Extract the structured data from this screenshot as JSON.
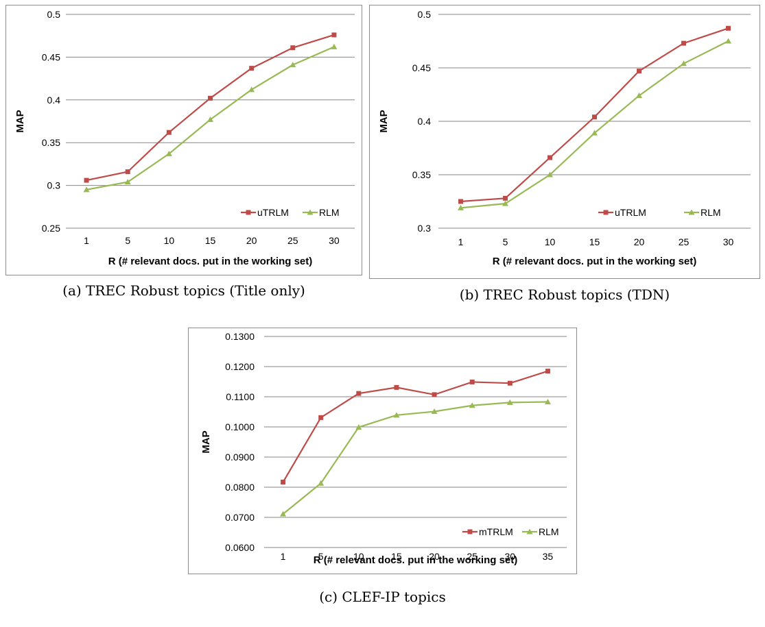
{
  "captions": {
    "a": "(a) TREC Robust topics (Title only)",
    "b": "(b) TREC Robust topics (TDN)",
    "c": "(c) CLEF-IP topics"
  },
  "colors": {
    "series_red": "#be4b48",
    "series_green": "#98b954",
    "grid": "#868686"
  },
  "chart_data": [
    {
      "id": "a",
      "type": "line",
      "title": "",
      "xlabel": "R (# relevant docs. put in the working set)",
      "ylabel": "MAP",
      "categories": [
        "1",
        "5",
        "10",
        "15",
        "20",
        "25",
        "30"
      ],
      "ylim": [
        0.25,
        0.5
      ],
      "yticks": [
        "0.25",
        "0.3",
        "0.35",
        "0.4",
        "0.45",
        "0.5"
      ],
      "ytick_values": [
        0.25,
        0.3,
        0.35,
        0.4,
        0.45,
        0.5
      ],
      "grid": true,
      "legend_position": "bottom-right",
      "series": [
        {
          "name": "uTRLM",
          "color": "#be4b48",
          "marker": "square",
          "values": [
            0.306,
            0.316,
            0.362,
            0.402,
            0.437,
            0.461,
            0.476
          ]
        },
        {
          "name": "RLM",
          "color": "#98b954",
          "marker": "triangle",
          "values": [
            0.295,
            0.304,
            0.337,
            0.377,
            0.412,
            0.441,
            0.462
          ]
        }
      ]
    },
    {
      "id": "b",
      "type": "line",
      "title": "",
      "xlabel": "R (# relevant docs. put in the working set)",
      "ylabel": "MAP",
      "categories": [
        "1",
        "5",
        "10",
        "15",
        "20",
        "25",
        "30"
      ],
      "ylim": [
        0.3,
        0.5
      ],
      "yticks": [
        "0.3",
        "0.35",
        "0.4",
        "0.45",
        "0.5"
      ],
      "ytick_values": [
        0.3,
        0.35,
        0.4,
        0.45,
        0.5
      ],
      "grid": true,
      "legend_position": "bottom-right",
      "series": [
        {
          "name": "uTRLM",
          "color": "#be4b48",
          "marker": "square",
          "values": [
            0.325,
            0.328,
            0.366,
            0.404,
            0.447,
            0.473,
            0.487
          ]
        },
        {
          "name": "RLM",
          "color": "#98b954",
          "marker": "triangle",
          "values": [
            0.319,
            0.323,
            0.35,
            0.389,
            0.424,
            0.454,
            0.475
          ]
        }
      ]
    },
    {
      "id": "c",
      "type": "line",
      "title": "",
      "xlabel": "R (# relevant docs. put in the working set)",
      "ylabel": "MAP",
      "categories": [
        "1",
        "5",
        "10",
        "15",
        "20",
        "25",
        "30",
        "35"
      ],
      "ylim": [
        0.06,
        0.13
      ],
      "yticks": [
        "0.0600",
        "0.0700",
        "0.0800",
        "0.0900",
        "0.1000",
        "0.1100",
        "0.1200",
        "0.1300"
      ],
      "ytick_values": [
        0.06,
        0.07,
        0.08,
        0.09,
        0.1,
        0.11,
        0.12,
        0.13
      ],
      "grid": true,
      "legend_position": "bottom-right",
      "series": [
        {
          "name": "mTRLM",
          "color": "#be4b48",
          "marker": "square",
          "values": [
            0.0817,
            0.1031,
            0.1111,
            0.1131,
            0.1107,
            0.1149,
            0.1145,
            0.1185
          ]
        },
        {
          "name": "RLM",
          "color": "#98b954",
          "marker": "triangle",
          "values": [
            0.0711,
            0.0813,
            0.0999,
            0.1039,
            0.1051,
            0.1071,
            0.1081,
            0.1083
          ]
        }
      ]
    }
  ]
}
